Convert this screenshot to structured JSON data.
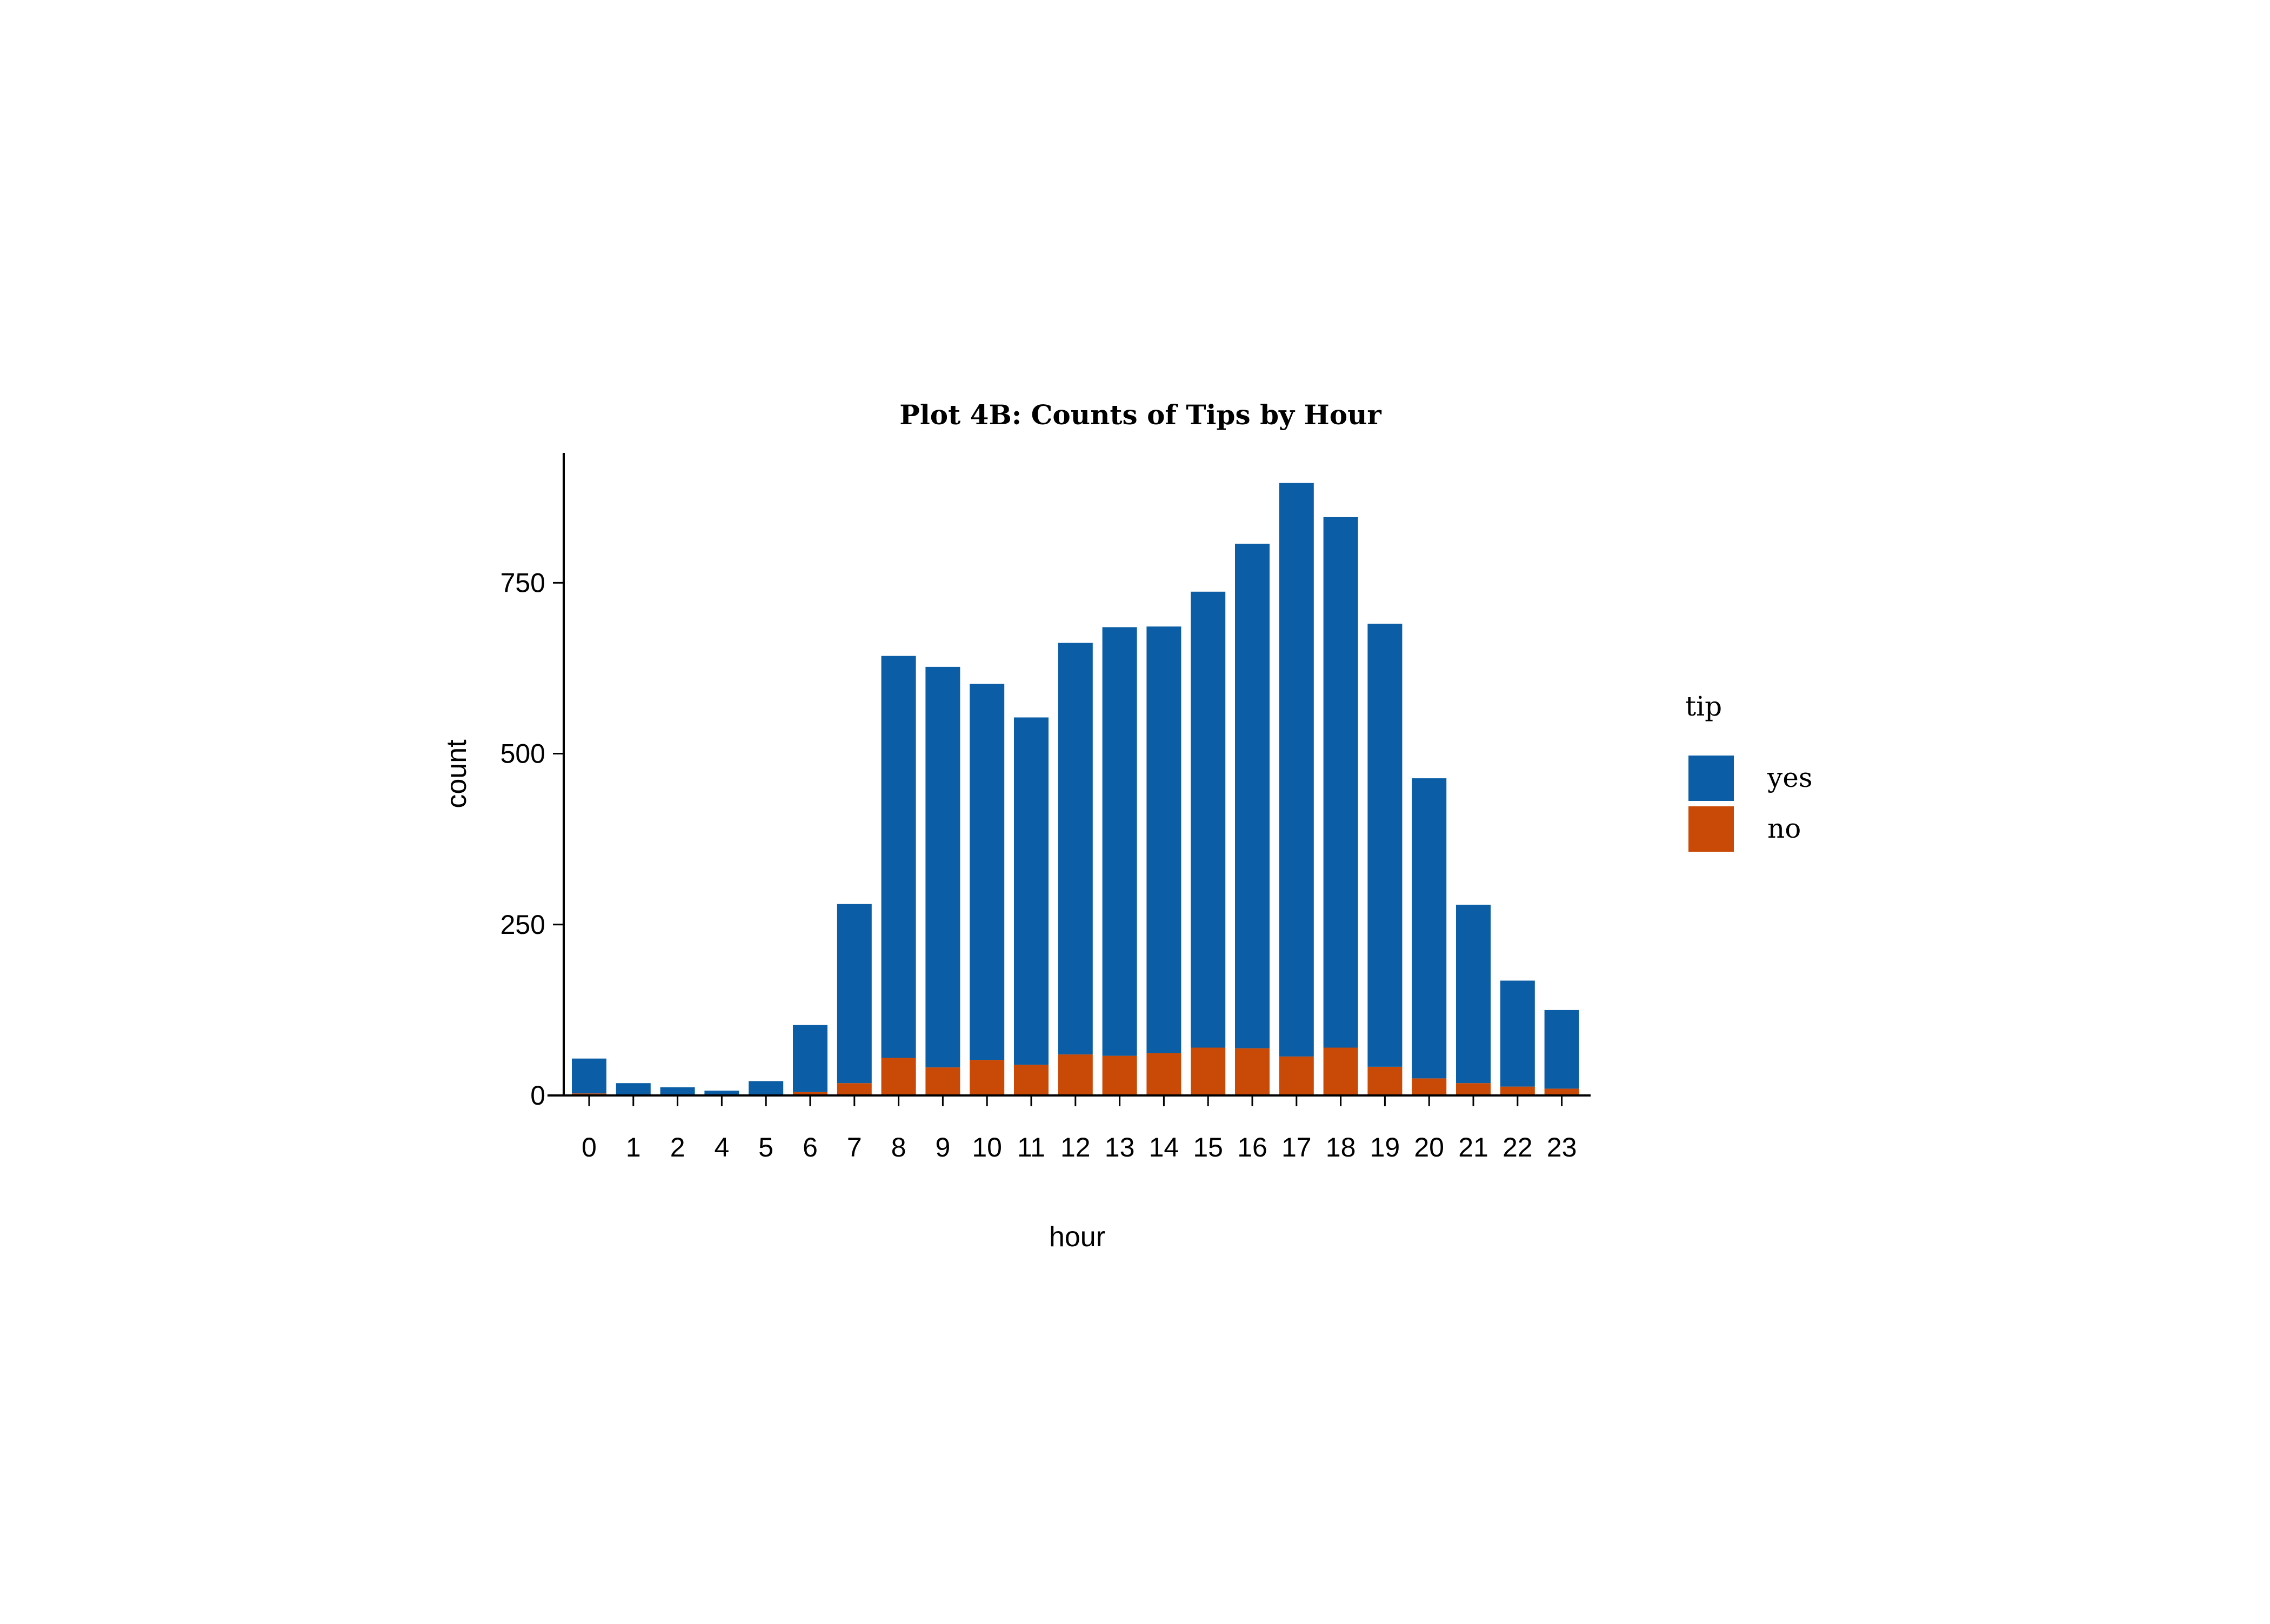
{
  "chart_data": {
    "type": "bar",
    "stacked": true,
    "title": "Plot 4B: Counts of Tips by Hour",
    "xlabel": "hour",
    "ylabel": "count",
    "categories": [
      "0",
      "1",
      "2",
      "4",
      "5",
      "6",
      "7",
      "8",
      "9",
      "10",
      "11",
      "12",
      "13",
      "14",
      "15",
      "16",
      "17",
      "18",
      "19",
      "20",
      "21",
      "22",
      "23"
    ],
    "ylim": [
      0,
      940
    ],
    "yticks": [
      0,
      250,
      500,
      750
    ],
    "grid": false,
    "legend": {
      "title": "tip",
      "position": "right"
    },
    "series": [
      {
        "name": "no",
        "color": "#C84A06",
        "values": [
          3,
          1,
          1,
          1,
          1,
          5,
          18,
          55,
          41,
          52,
          45,
          60,
          58,
          62,
          70,
          69,
          57,
          70,
          42,
          25,
          18,
          13,
          10
        ]
      },
      {
        "name": "yes",
        "color": "#0B5EA5",
        "values": [
          51,
          17,
          11,
          6,
          20,
          98,
          262,
          588,
          586,
          550,
          508,
          602,
          627,
          624,
          667,
          738,
          839,
          776,
          648,
          439,
          261,
          155,
          115
        ]
      }
    ]
  }
}
